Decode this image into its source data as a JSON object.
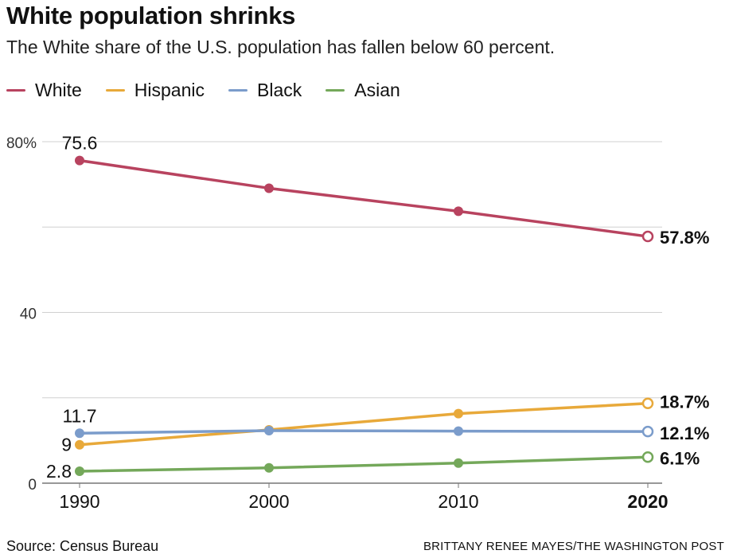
{
  "header": {
    "title": "White population shrinks",
    "subtitle": "The White share of the U.S. population has fallen below 60 percent."
  },
  "footer": {
    "source": "Source: Census Bureau",
    "credit": "BRITTANY RENEE MAYES/THE WASHINGTON POST"
  },
  "colors": {
    "white": "#b8435f",
    "hispanic": "#e8a93a",
    "black": "#7b9ccb",
    "asian": "#74a85a",
    "grid": "#d0d0d0",
    "axis": "#777777"
  },
  "chart_data": {
    "type": "line",
    "x": [
      1990,
      2000,
      2010,
      2020
    ],
    "x_tick_labels": [
      "1990",
      "2000",
      "2010",
      "2020"
    ],
    "y_tick_labels": [
      "80%",
      "40",
      "0"
    ],
    "y_ticks": [
      80,
      40,
      0
    ],
    "ylim": [
      0,
      80
    ],
    "grid": true,
    "legend_position": "top-left",
    "series": [
      {
        "key": "white",
        "name": "White",
        "values": [
          75.6,
          69.1,
          63.7,
          57.8
        ],
        "start_label": "75.6",
        "end_label": "57.8%"
      },
      {
        "key": "hispanic",
        "name": "Hispanic",
        "values": [
          9.0,
          12.5,
          16.3,
          18.7
        ],
        "start_label": "9",
        "end_label": "18.7%"
      },
      {
        "key": "black",
        "name": "Black",
        "values": [
          11.7,
          12.3,
          12.2,
          12.1
        ],
        "start_label": "11.7",
        "end_label": "12.1%"
      },
      {
        "key": "asian",
        "name": "Asian",
        "values": [
          2.8,
          3.6,
          4.7,
          6.1
        ],
        "start_label": "2.8",
        "end_label": "6.1%"
      }
    ]
  }
}
